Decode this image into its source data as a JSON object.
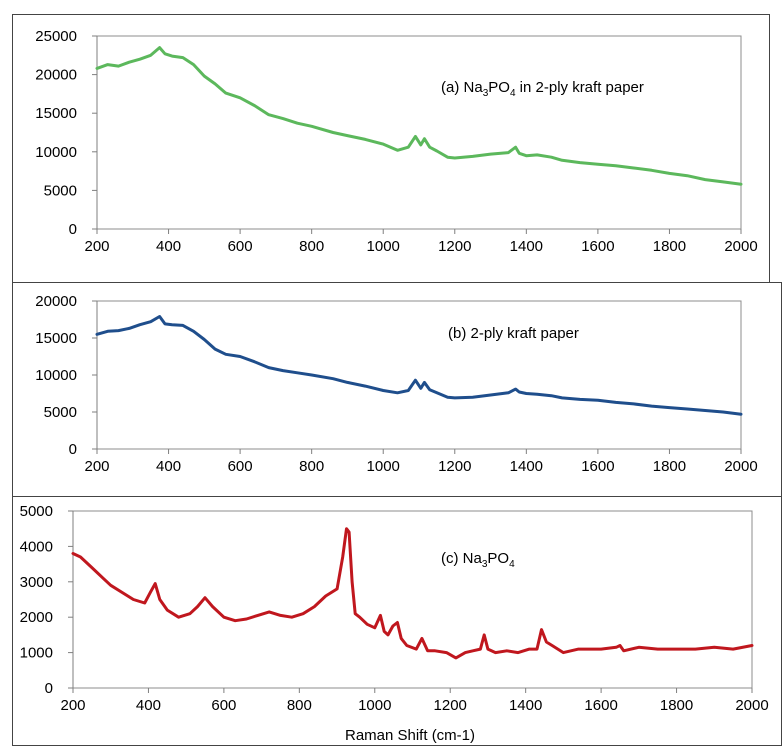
{
  "chart_data": [
    {
      "type": "line",
      "title": "",
      "xlabel": "",
      "ylabel": "",
      "xlim": [
        200,
        2000
      ],
      "ylim": [
        0,
        25000
      ],
      "x_ticks": [
        "200",
        "400",
        "600",
        "800",
        "1000",
        "1200",
        "1400",
        "1600",
        "1800",
        "2000"
      ],
      "y_ticks": [
        "0",
        "5000",
        "10000",
        "15000",
        "20000",
        "25000"
      ],
      "annotation": {
        "prefix": "(a) Na",
        "sub1": "3",
        "mid": "PO",
        "sub2": "4",
        "suffix": " in 2-ply kraft paper"
      },
      "color": "#5cb85c",
      "grid": false,
      "series": [
        {
          "x": [
            200,
            230,
            260,
            290,
            320,
            350,
            375,
            390,
            410,
            440,
            470,
            500,
            530,
            560,
            600,
            640,
            680,
            720,
            760,
            800,
            860,
            900,
            950,
            1000,
            1040,
            1070,
            1090,
            1105,
            1115,
            1130,
            1150,
            1180,
            1200,
            1250,
            1300,
            1350,
            1370,
            1380,
            1400,
            1430,
            1470,
            1500,
            1550,
            1600,
            1650,
            1700,
            1750,
            1800,
            1850,
            1900,
            1950,
            2000
          ],
          "y": [
            20800,
            21300,
            21100,
            21600,
            22000,
            22500,
            23500,
            22700,
            22400,
            22200,
            21300,
            19800,
            18800,
            17600,
            17000,
            16000,
            14800,
            14300,
            13700,
            13300,
            12500,
            12100,
            11600,
            11000,
            10200,
            10600,
            12000,
            10900,
            11700,
            10600,
            10100,
            9300,
            9200,
            9400,
            9700,
            9900,
            10600,
            9800,
            9500,
            9600,
            9300,
            8900,
            8600,
            8400,
            8200,
            7900,
            7600,
            7200,
            6900,
            6400,
            6100,
            5800
          ]
        }
      ]
    },
    {
      "type": "line",
      "title": "",
      "xlabel": "",
      "ylabel": "",
      "xlim": [
        200,
        2000
      ],
      "ylim": [
        0,
        20000
      ],
      "x_ticks": [
        "200",
        "400",
        "600",
        "800",
        "1000",
        "1200",
        "1400",
        "1600",
        "1800",
        "2000"
      ],
      "y_ticks": [
        "0",
        "5000",
        "10000",
        "15000",
        "20000"
      ],
      "annotation": {
        "prefix": "(b) 2-ply kraft paper",
        "sub1": "",
        "mid": "",
        "sub2": "",
        "suffix": ""
      },
      "color": "#1f4e8c",
      "grid": false,
      "series": [
        {
          "x": [
            200,
            230,
            260,
            290,
            320,
            350,
            375,
            390,
            410,
            440,
            470,
            500,
            530,
            560,
            600,
            640,
            680,
            720,
            760,
            800,
            860,
            900,
            950,
            1000,
            1040,
            1070,
            1090,
            1105,
            1115,
            1130,
            1150,
            1180,
            1200,
            1250,
            1300,
            1350,
            1370,
            1380,
            1400,
            1430,
            1470,
            1500,
            1550,
            1600,
            1650,
            1700,
            1750,
            1800,
            1850,
            1900,
            1950,
            2000
          ],
          "y": [
            15500,
            15900,
            16000,
            16300,
            16800,
            17200,
            17900,
            16900,
            16800,
            16700,
            15900,
            14800,
            13500,
            12800,
            12500,
            11800,
            11000,
            10600,
            10300,
            10000,
            9500,
            9000,
            8500,
            7900,
            7600,
            7900,
            9300,
            8200,
            9000,
            8000,
            7600,
            7000,
            6900,
            7000,
            7300,
            7600,
            8100,
            7700,
            7500,
            7400,
            7200,
            6900,
            6700,
            6600,
            6300,
            6100,
            5800,
            5600,
            5400,
            5200,
            5000,
            4700
          ]
        }
      ]
    },
    {
      "type": "line",
      "title": "",
      "xlabel": "Raman Shift (cm-1)",
      "ylabel": "",
      "xlim": [
        200,
        2000
      ],
      "ylim": [
        0,
        5000
      ],
      "x_ticks": [
        "200",
        "400",
        "600",
        "800",
        "1000",
        "1200",
        "1400",
        "1600",
        "1800",
        "2000"
      ],
      "y_ticks": [
        "0",
        "1000",
        "2000",
        "3000",
        "4000",
        "5000"
      ],
      "annotation": {
        "prefix": "(c) Na",
        "sub1": "3",
        "mid": "PO",
        "sub2": "4",
        "suffix": ""
      },
      "color": "#c0171e",
      "grid": false,
      "series": [
        {
          "x": [
            200,
            220,
            250,
            280,
            300,
            330,
            360,
            390,
            405,
            418,
            430,
            450,
            480,
            510,
            530,
            550,
            570,
            600,
            630,
            660,
            690,
            720,
            750,
            780,
            810,
            840,
            870,
            900,
            915,
            925,
            932,
            940,
            948,
            960,
            980,
            1000,
            1015,
            1025,
            1035,
            1048,
            1060,
            1070,
            1085,
            1110,
            1125,
            1140,
            1160,
            1190,
            1215,
            1240,
            1260,
            1280,
            1290,
            1300,
            1320,
            1350,
            1380,
            1410,
            1430,
            1442,
            1455,
            1470,
            1500,
            1540,
            1600,
            1640,
            1650,
            1660,
            1700,
            1750,
            1800,
            1850,
            1900,
            1950,
            2000
          ],
          "y": [
            3800,
            3700,
            3400,
            3100,
            2900,
            2700,
            2500,
            2400,
            2700,
            2950,
            2500,
            2200,
            2000,
            2100,
            2300,
            2550,
            2300,
            2000,
            1900,
            1950,
            2050,
            2150,
            2050,
            2000,
            2100,
            2300,
            2600,
            2800,
            3700,
            4500,
            4400,
            3000,
            2100,
            2000,
            1800,
            1700,
            2050,
            1600,
            1500,
            1750,
            1850,
            1400,
            1200,
            1100,
            1400,
            1050,
            1050,
            1000,
            850,
            1000,
            1050,
            1100,
            1500,
            1100,
            1000,
            1050,
            1000,
            1100,
            1100,
            1650,
            1300,
            1200,
            1000,
            1100,
            1100,
            1150,
            1200,
            1050,
            1150,
            1100,
            1100,
            1100,
            1150,
            1100,
            1200
          ]
        }
      ]
    }
  ]
}
